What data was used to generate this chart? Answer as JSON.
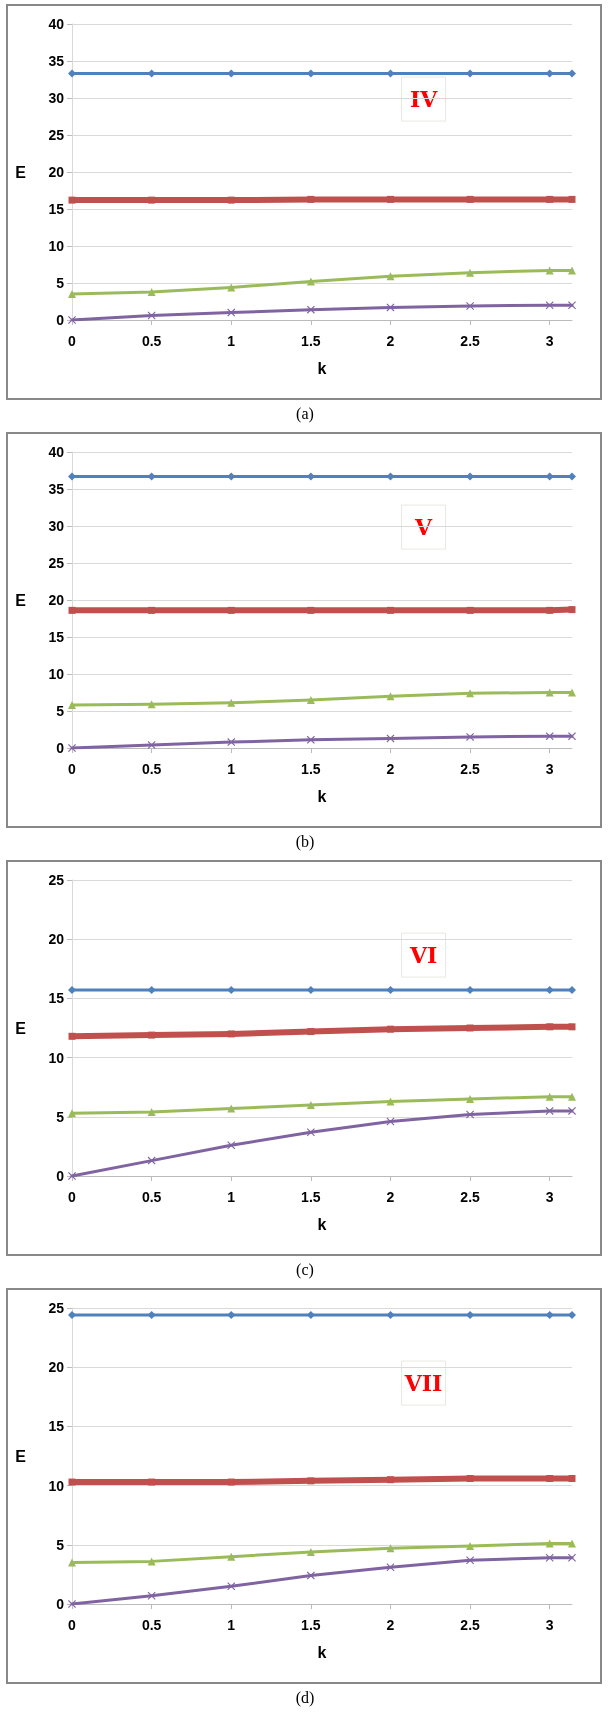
{
  "chart_data": [
    {
      "type": "line",
      "xlabel": "k",
      "ylabel": "E",
      "x": [
        0,
        0.5,
        1,
        1.5,
        2,
        2.5,
        3,
        3.14
      ],
      "xlim": [
        0,
        3.14
      ],
      "xticks": [
        0,
        0.5,
        1,
        1.5,
        2,
        2.5,
        3
      ],
      "ylim": [
        0,
        40
      ],
      "yticks": [
        0,
        5,
        10,
        15,
        20,
        25,
        30,
        35,
        40
      ],
      "grid": "y",
      "annotations": [
        "IV",
        "(a)"
      ],
      "series": [
        {
          "color": "#4f81bd",
          "marker": "diamond",
          "values": [
            33.3,
            33.3,
            33.3,
            33.3,
            33.3,
            33.3,
            33.3,
            33.3
          ]
        },
        {
          "color": "#c0504d",
          "marker": "square",
          "values": [
            16.2,
            16.2,
            16.2,
            16.3,
            16.3,
            16.3,
            16.3,
            16.3
          ]
        },
        {
          "color": "#9bbb59",
          "marker": "triangle",
          "values": [
            3.5,
            3.8,
            4.4,
            5.2,
            5.9,
            6.4,
            6.7,
            6.7
          ]
        },
        {
          "color": "#8064a2",
          "marker": "cross",
          "values": [
            0,
            0.6,
            1.0,
            1.4,
            1.7,
            1.9,
            2.0,
            2.0
          ]
        }
      ]
    },
    {
      "type": "line",
      "xlabel": "k",
      "ylabel": "E",
      "x": [
        0,
        0.5,
        1,
        1.5,
        2,
        2.5,
        3,
        3.14
      ],
      "xlim": [
        0,
        3.14
      ],
      "xticks": [
        0,
        0.5,
        1,
        1.5,
        2,
        2.5,
        3
      ],
      "ylim": [
        0,
        40
      ],
      "yticks": [
        0,
        5,
        10,
        15,
        20,
        25,
        30,
        35,
        40
      ],
      "grid": "y",
      "annotations": [
        "V",
        "(b)"
      ],
      "series": [
        {
          "color": "#4f81bd",
          "marker": "diamond",
          "values": [
            36.7,
            36.7,
            36.7,
            36.7,
            36.7,
            36.7,
            36.7,
            36.7
          ]
        },
        {
          "color": "#c0504d",
          "marker": "square",
          "values": [
            18.6,
            18.6,
            18.6,
            18.6,
            18.6,
            18.6,
            18.6,
            18.7
          ]
        },
        {
          "color": "#9bbb59",
          "marker": "triangle",
          "values": [
            5.8,
            5.9,
            6.1,
            6.5,
            7.0,
            7.4,
            7.5,
            7.5
          ]
        },
        {
          "color": "#8064a2",
          "marker": "cross",
          "values": [
            0,
            0.4,
            0.8,
            1.1,
            1.3,
            1.5,
            1.6,
            1.6
          ]
        }
      ]
    },
    {
      "type": "line",
      "xlabel": "k",
      "ylabel": "E",
      "x": [
        0,
        0.5,
        1,
        1.5,
        2,
        2.5,
        3,
        3.14
      ],
      "xlim": [
        0,
        3.14
      ],
      "xticks": [
        0,
        0.5,
        1,
        1.5,
        2,
        2.5,
        3
      ],
      "ylim": [
        0,
        25
      ],
      "yticks": [
        0,
        5,
        10,
        15,
        20,
        25
      ],
      "grid": "y",
      "annotations": [
        "VI",
        "(c)"
      ],
      "series": [
        {
          "color": "#4f81bd",
          "marker": "diamond",
          "values": [
            15.7,
            15.7,
            15.7,
            15.7,
            15.7,
            15.7,
            15.7,
            15.7
          ]
        },
        {
          "color": "#c0504d",
          "marker": "square",
          "values": [
            11.8,
            11.9,
            12.0,
            12.2,
            12.4,
            12.5,
            12.6,
            12.6
          ]
        },
        {
          "color": "#9bbb59",
          "marker": "triangle",
          "values": [
            5.3,
            5.4,
            5.7,
            6.0,
            6.3,
            6.5,
            6.7,
            6.7
          ]
        },
        {
          "color": "#8064a2",
          "marker": "cross",
          "values": [
            0,
            1.3,
            2.6,
            3.7,
            4.6,
            5.2,
            5.5,
            5.5
          ]
        }
      ]
    },
    {
      "type": "line",
      "xlabel": "k",
      "ylabel": "E",
      "x": [
        0,
        0.5,
        1,
        1.5,
        2,
        2.5,
        3,
        3.14
      ],
      "xlim": [
        0,
        3.14
      ],
      "xticks": [
        0,
        0.5,
        1,
        1.5,
        2,
        2.5,
        3
      ],
      "ylim": [
        0,
        25
      ],
      "yticks": [
        0,
        5,
        10,
        15,
        20,
        25
      ],
      "grid": "y",
      "annotations": [
        "VII",
        "(d)"
      ],
      "series": [
        {
          "color": "#4f81bd",
          "marker": "diamond",
          "values": [
            24.4,
            24.4,
            24.4,
            24.4,
            24.4,
            24.4,
            24.4,
            24.4
          ]
        },
        {
          "color": "#c0504d",
          "marker": "square",
          "values": [
            10.3,
            10.3,
            10.3,
            10.4,
            10.5,
            10.6,
            10.6,
            10.6
          ]
        },
        {
          "color": "#9bbb59",
          "marker": "triangle",
          "values": [
            3.5,
            3.6,
            4.0,
            4.4,
            4.7,
            4.9,
            5.1,
            5.1
          ]
        },
        {
          "color": "#8064a2",
          "marker": "cross",
          "values": [
            0,
            0.7,
            1.5,
            2.4,
            3.1,
            3.7,
            3.9,
            3.9
          ]
        }
      ]
    }
  ]
}
